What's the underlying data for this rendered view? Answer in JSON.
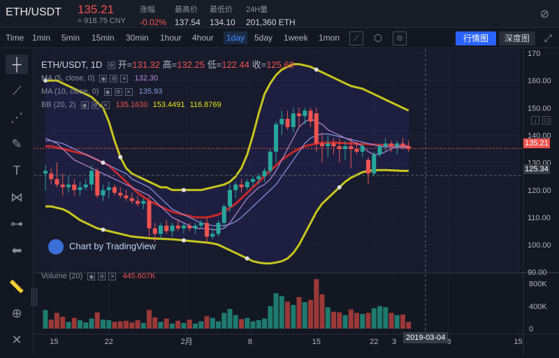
{
  "header": {
    "pair": "ETH/USDT",
    "price": "135.21",
    "cny": "≈ 918.75 CNY",
    "stats": [
      {
        "label": "涨幅",
        "value": "-0.02%",
        "red": true
      },
      {
        "label": "最高价",
        "value": "137.54",
        "red": false
      },
      {
        "label": "最低价",
        "value": "134.10",
        "red": false
      },
      {
        "label": "24H量",
        "value": "201,360 ETH",
        "red": false
      }
    ]
  },
  "toolbar": {
    "timeframes": [
      "Time",
      "1min",
      "5min",
      "15min",
      "30min",
      "1hour",
      "4hour",
      "1day",
      "5day",
      "1week",
      "1mon"
    ],
    "active": "1day",
    "btn_market": "行情图",
    "btn_depth": "深度图"
  },
  "legend": {
    "symbol": "ETH/USDT, 1D",
    "open_label": "开=",
    "open": "131.32",
    "high_label": "高=",
    "high": "132.25",
    "low_label": "低=",
    "low": "122.44",
    "close_label": "收=",
    "close": "125.69",
    "ma5_label": "MA (5, close, 0)",
    "ma5_value": "132.30",
    "ma10_label": "MA (10, close, 0)",
    "ma10_value": "135.93",
    "bb_label": "BB (20, 2)",
    "bb_mid": "135.1630",
    "bb_up": "153.4491",
    "bb_low": "116.8769",
    "volume_label": "Volume (20)",
    "volume_value": "445.607K"
  },
  "watermark": "Chart by TradingView",
  "last_price_tag": "135.21",
  "crosshair_price_tag": "125.34",
  "crosshair_date": "2019-03-04",
  "price_axis_ticks": [
    "170",
    "160.00",
    "150.00",
    "140.00",
    "130.00",
    "120.00",
    "110.00",
    "100.00",
    "90.00"
  ],
  "volume_axis_ticks": [
    "800K",
    "400K",
    "0"
  ],
  "date_axis_ticks": [
    {
      "label": "15"
    },
    {
      "label": "22"
    },
    {
      "label": "2月"
    },
    {
      "label": "8"
    },
    {
      "label": "15"
    },
    {
      "label": "22"
    },
    {
      "label": "3"
    },
    {
      "label": "8"
    },
    {
      "label": "15"
    }
  ],
  "colors": {
    "up": "#26a69a",
    "down": "#ef5350",
    "bb_band": "#c8c61e",
    "bb_mid": "#c62828",
    "ma5": "#b58ad6",
    "ma10": "#8a96e6"
  },
  "chart_data": {
    "type": "candlestick",
    "ylim": [
      90,
      170
    ],
    "volume_ylim": [
      0,
      1000
    ],
    "candles": [
      [
        127,
        129,
        120,
        126,
        "u"
      ],
      [
        126,
        128,
        122,
        124,
        "d"
      ],
      [
        124,
        130,
        121,
        122,
        "d"
      ],
      [
        122,
        126,
        118,
        121,
        "d"
      ],
      [
        121,
        125,
        119,
        122,
        "u"
      ],
      [
        122,
        124,
        118,
        120,
        "d"
      ],
      [
        120,
        123,
        118,
        121,
        "u"
      ],
      [
        121,
        124,
        120,
        122,
        "u"
      ],
      [
        122,
        129,
        120,
        127,
        "u"
      ],
      [
        127,
        128,
        117,
        118,
        "d"
      ],
      [
        118,
        122,
        116,
        120,
        "u"
      ],
      [
        120,
        123,
        117,
        121,
        "u"
      ],
      [
        121,
        122,
        118,
        119,
        "d"
      ],
      [
        119,
        121,
        117,
        118,
        "d"
      ],
      [
        118,
        120,
        116,
        117,
        "d"
      ],
      [
        117,
        119,
        115,
        116,
        "d"
      ],
      [
        116,
        118,
        114,
        115,
        "d"
      ],
      [
        115,
        117,
        113,
        116,
        "u"
      ],
      [
        116,
        118,
        103,
        106,
        "d"
      ],
      [
        106,
        108,
        101,
        104,
        "d"
      ],
      [
        104,
        108,
        102,
        107,
        "u"
      ],
      [
        107,
        109,
        104,
        105,
        "d"
      ],
      [
        105,
        108,
        103,
        107,
        "u"
      ],
      [
        107,
        109,
        105,
        106,
        "d"
      ],
      [
        106,
        108,
        104,
        107,
        "u"
      ],
      [
        107,
        108,
        105,
        106,
        "d"
      ],
      [
        106,
        108,
        104,
        107,
        "u"
      ],
      [
        107,
        109,
        106,
        108,
        "u"
      ],
      [
        108,
        110,
        101,
        103,
        "d"
      ],
      [
        103,
        106,
        102,
        104,
        "u"
      ],
      [
        104,
        109,
        103,
        108,
        "u"
      ],
      [
        108,
        115,
        106,
        114,
        "u"
      ],
      [
        114,
        122,
        112,
        120,
        "u"
      ],
      [
        120,
        123,
        117,
        122,
        "u"
      ],
      [
        122,
        124,
        119,
        121,
        "d"
      ],
      [
        121,
        124,
        120,
        123,
        "u"
      ],
      [
        123,
        125,
        121,
        124,
        "u"
      ],
      [
        124,
        126,
        122,
        125,
        "u"
      ],
      [
        125,
        128,
        123,
        127,
        "u"
      ],
      [
        127,
        135,
        126,
        134,
        "u"
      ],
      [
        134,
        145,
        130,
        144,
        "u"
      ],
      [
        144,
        149,
        140,
        146,
        "u"
      ],
      [
        146,
        149,
        142,
        143,
        "d"
      ],
      [
        143,
        150,
        141,
        148,
        "u"
      ],
      [
        148,
        150,
        143,
        147,
        "d"
      ],
      [
        147,
        150,
        144,
        149,
        "u"
      ],
      [
        149,
        150,
        143,
        145,
        "d"
      ],
      [
        148,
        150,
        134,
        137,
        "d"
      ],
      [
        137,
        141,
        130,
        136,
        "d"
      ],
      [
        136,
        140,
        132,
        137,
        "u"
      ],
      [
        137,
        139,
        133,
        136,
        "d"
      ],
      [
        136,
        139,
        130,
        135,
        "d"
      ],
      [
        135,
        138,
        131,
        136,
        "u"
      ],
      [
        136,
        139,
        128,
        135,
        "d"
      ],
      [
        135,
        138,
        133,
        134,
        "d"
      ],
      [
        134,
        137,
        132,
        136,
        "u"
      ],
      [
        131,
        132,
        122,
        126,
        "d"
      ],
      [
        126,
        134,
        125,
        133,
        "u"
      ],
      [
        133,
        137,
        132,
        136,
        "u"
      ],
      [
        136,
        139,
        134,
        137,
        "u"
      ],
      [
        137,
        138,
        134,
        136,
        "d"
      ],
      [
        136,
        138,
        133,
        137,
        "u"
      ],
      [
        137,
        139,
        135,
        136,
        "d"
      ],
      [
        136,
        138,
        134,
        135,
        "d"
      ]
    ],
    "volumes": [
      330,
      160,
      280,
      210,
      120,
      190,
      150,
      110,
      180,
      290,
      160,
      150,
      120,
      130,
      140,
      110,
      150,
      100,
      330,
      200,
      120,
      180,
      90,
      140,
      100,
      160,
      90,
      130,
      220,
      190,
      130,
      280,
      350,
      240,
      170,
      190,
      130,
      150,
      180,
      400,
      630,
      580,
      480,
      420,
      560,
      470,
      510,
      880,
      610,
      380,
      300,
      290,
      240,
      340,
      280,
      260,
      280,
      360,
      400,
      380,
      280,
      240,
      250,
      120
    ],
    "bb_upper": [
      160,
      160,
      160,
      159,
      158,
      157,
      156,
      155,
      154,
      152,
      150,
      145,
      138,
      132,
      128,
      126,
      125,
      124,
      123,
      122,
      121,
      121,
      120,
      120,
      120,
      120,
      120,
      120,
      120.5,
      121,
      121.5,
      122,
      123,
      125,
      128,
      133,
      140,
      148,
      155,
      159,
      162,
      164,
      165,
      166,
      166,
      165.5,
      165,
      164,
      163,
      162,
      161,
      160,
      159,
      158,
      157.5,
      157,
      156,
      155,
      154,
      153,
      152,
      151,
      150,
      149
    ],
    "bb_mid": [
      136,
      136,
      135.5,
      135,
      134.5,
      134,
      133.5,
      133,
      132,
      131,
      130,
      129,
      127,
      125,
      123,
      121,
      119,
      117.5,
      116,
      115,
      114,
      113,
      112,
      111.5,
      111,
      110.5,
      110,
      110,
      110,
      110.5,
      111,
      112,
      113.5,
      115,
      117,
      119,
      121,
      123,
      125,
      127,
      129,
      131,
      132.5,
      134,
      135,
      136,
      136.5,
      137,
      137.2,
      137.3,
      137.3,
      137.2,
      137.1,
      137,
      136.9,
      136.8,
      136.7,
      136.6,
      136.5,
      136.4,
      136.3,
      136.2,
      136.1,
      136
    ],
    "bb_lower": [
      114,
      114,
      113.5,
      113,
      112,
      110.5,
      109,
      108,
      107,
      106,
      105.5,
      105,
      104.5,
      104,
      103.5,
      103,
      102.8,
      102.6,
      102.4,
      102.3,
      102.2,
      102.1,
      102,
      101.8,
      101.6,
      101.4,
      101.2,
      101,
      100.8,
      100.5,
      100,
      99,
      98,
      97,
      96,
      95,
      94,
      93.5,
      93.2,
      93.2,
      93.5,
      94,
      95,
      97,
      100,
      104,
      108,
      112,
      115,
      117,
      119,
      121,
      123,
      124.5,
      125.5,
      126.5,
      127,
      127.2,
      127.3,
      127.3,
      127.2,
      127.1,
      127,
      127
    ],
    "ma5": [
      139,
      138,
      137,
      135,
      133,
      131,
      130,
      129,
      128,
      127,
      126,
      125,
      124,
      123,
      122,
      121,
      120,
      119,
      118,
      116,
      114,
      112,
      110,
      109,
      108,
      107,
      106,
      106,
      106,
      105.5,
      105.5,
      106,
      108,
      111,
      114,
      117,
      119,
      121,
      122,
      124,
      127,
      131,
      135,
      139,
      143,
      145,
      146,
      145,
      144,
      142,
      141,
      140,
      139,
      138,
      137,
      136,
      134,
      133,
      133,
      134,
      135,
      136,
      136,
      136
    ],
    "ma10": [
      138,
      138,
      137.5,
      137,
      136,
      135,
      134,
      133,
      132,
      131,
      130,
      129,
      128,
      127,
      126,
      124,
      123,
      122,
      121,
      119,
      117,
      115,
      113,
      112,
      111,
      110,
      109,
      108,
      107.5,
      107,
      107,
      107,
      107.5,
      108.5,
      110,
      112,
      114,
      116,
      118,
      120,
      122,
      125,
      128,
      131,
      134,
      137,
      139,
      140,
      140.5,
      140.5,
      140,
      139.5,
      139,
      138.5,
      138,
      137.5,
      137,
      136.5,
      136,
      135.8,
      135.7,
      135.6,
      135.5,
      135.4
    ]
  }
}
